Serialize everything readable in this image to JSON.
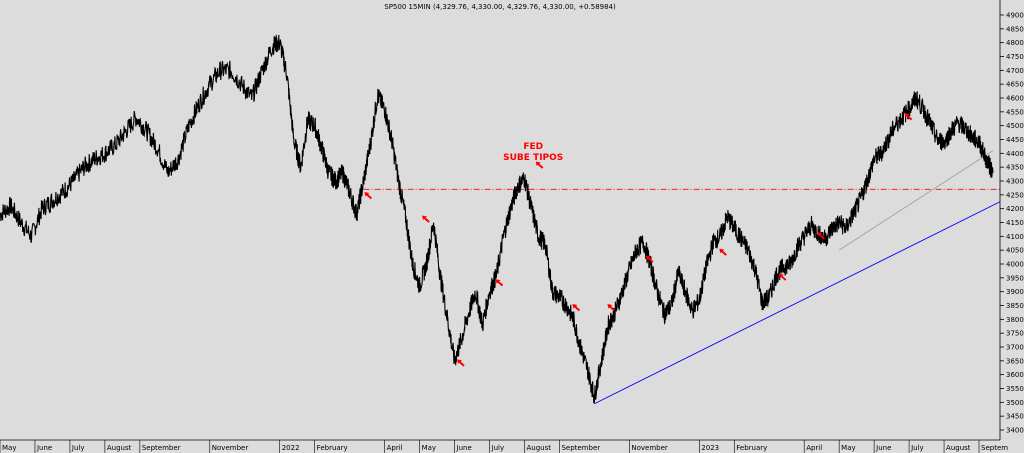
{
  "chart_data": {
    "type": "line",
    "title": "SP500 15MIN (4,329.76, 4,330.00, 4,329.76, 4,330.00, +0.58984)",
    "xlabel": "",
    "ylabel": "",
    "ylim": [
      3400,
      4900
    ],
    "y_ticks": [
      3400,
      3450,
      3500,
      3550,
      3600,
      3650,
      3700,
      3750,
      3800,
      3850,
      3900,
      3950,
      4000,
      4050,
      4100,
      4150,
      4200,
      4250,
      4300,
      4350,
      4400,
      4450,
      4500,
      4550,
      4600,
      4650,
      4700,
      4750,
      4800,
      4850,
      4900
    ],
    "x_labels": [
      {
        "label": "May",
        "t": 0
      },
      {
        "label": "June",
        "t": 1
      },
      {
        "label": "July",
        "t": 2
      },
      {
        "label": "August",
        "t": 3
      },
      {
        "label": "September",
        "t": 4
      },
      {
        "label": "November",
        "t": 6
      },
      {
        "label": "2022",
        "t": 8
      },
      {
        "label": "February",
        "t": 9
      },
      {
        "label": "April",
        "t": 11
      },
      {
        "label": "May",
        "t": 12
      },
      {
        "label": "June",
        "t": 13
      },
      {
        "label": "July",
        "t": 14
      },
      {
        "label": "August",
        "t": 15
      },
      {
        "label": "September",
        "t": 16
      },
      {
        "label": "November",
        "t": 18
      },
      {
        "label": "2023",
        "t": 20
      },
      {
        "label": "February",
        "t": 21
      },
      {
        "label": "April",
        "t": 23
      },
      {
        "label": "May",
        "t": 24
      },
      {
        "label": "June",
        "t": 25
      },
      {
        "label": "July",
        "t": 26
      },
      {
        "label": "August",
        "t": 27
      },
      {
        "label": "Septem",
        "t": 28
      }
    ],
    "xlim": [
      0,
      28.6
    ],
    "series": [
      {
        "color": "#000000",
        "points": [
          [
            0,
            4180
          ],
          [
            0.3,
            4210
          ],
          [
            0.6,
            4150
          ],
          [
            0.9,
            4100
          ],
          [
            1.2,
            4200
          ],
          [
            1.5,
            4230
          ],
          [
            1.8,
            4260
          ],
          [
            2.1,
            4300
          ],
          [
            2.4,
            4350
          ],
          [
            2.7,
            4380
          ],
          [
            3.0,
            4400
          ],
          [
            3.3,
            4430
          ],
          [
            3.6,
            4480
          ],
          [
            3.9,
            4530
          ],
          [
            4.2,
            4480
          ],
          [
            4.5,
            4420
          ],
          [
            4.8,
            4330
          ],
          [
            5.1,
            4380
          ],
          [
            5.4,
            4500
          ],
          [
            5.7,
            4580
          ],
          [
            6.0,
            4650
          ],
          [
            6.3,
            4700
          ],
          [
            6.6,
            4700
          ],
          [
            6.9,
            4650
          ],
          [
            7.2,
            4600
          ],
          [
            7.5,
            4700
          ],
          [
            7.8,
            4790
          ],
          [
            8.0,
            4800
          ],
          [
            8.2,
            4690
          ],
          [
            8.4,
            4450
          ],
          [
            8.6,
            4350
          ],
          [
            8.8,
            4520
          ],
          [
            9.0,
            4500
          ],
          [
            9.2,
            4420
          ],
          [
            9.4,
            4330
          ],
          [
            9.6,
            4300
          ],
          [
            9.8,
            4330
          ],
          [
            10.0,
            4260
          ],
          [
            10.2,
            4180
          ],
          [
            10.4,
            4300
          ],
          [
            10.6,
            4440
          ],
          [
            10.8,
            4610
          ],
          [
            11.0,
            4560
          ],
          [
            11.2,
            4450
          ],
          [
            11.4,
            4300
          ],
          [
            11.6,
            4170
          ],
          [
            11.8,
            4000
          ],
          [
            12.0,
            3920
          ],
          [
            12.2,
            4000
          ],
          [
            12.4,
            4150
          ],
          [
            12.6,
            3950
          ],
          [
            12.8,
            3800
          ],
          [
            13.0,
            3650
          ],
          [
            13.2,
            3730
          ],
          [
            13.4,
            3820
          ],
          [
            13.6,
            3900
          ],
          [
            13.8,
            3780
          ],
          [
            14.0,
            3900
          ],
          [
            14.2,
            3960
          ],
          [
            14.4,
            4100
          ],
          [
            14.6,
            4200
          ],
          [
            14.8,
            4280
          ],
          [
            15.0,
            4310
          ],
          [
            15.2,
            4200
          ],
          [
            15.4,
            4100
          ],
          [
            15.6,
            4070
          ],
          [
            15.8,
            3900
          ],
          [
            16.0,
            3880
          ],
          [
            16.2,
            3850
          ],
          [
            16.4,
            3800
          ],
          [
            16.6,
            3700
          ],
          [
            16.8,
            3620
          ],
          [
            17.0,
            3520
          ],
          [
            17.2,
            3650
          ],
          [
            17.4,
            3780
          ],
          [
            17.6,
            3830
          ],
          [
            17.8,
            3900
          ],
          [
            18.0,
            3980
          ],
          [
            18.2,
            4050
          ],
          [
            18.4,
            4080
          ],
          [
            18.6,
            4000
          ],
          [
            18.8,
            3900
          ],
          [
            19.0,
            3820
          ],
          [
            19.2,
            3850
          ],
          [
            19.4,
            3970
          ],
          [
            19.6,
            3900
          ],
          [
            19.8,
            3830
          ],
          [
            20.0,
            3870
          ],
          [
            20.2,
            3990
          ],
          [
            20.4,
            4080
          ],
          [
            20.6,
            4100
          ],
          [
            20.8,
            4170
          ],
          [
            21.0,
            4130
          ],
          [
            21.2,
            4090
          ],
          [
            21.4,
            4050
          ],
          [
            21.6,
            3980
          ],
          [
            21.8,
            3860
          ],
          [
            22.0,
            3880
          ],
          [
            22.2,
            3960
          ],
          [
            22.4,
            3990
          ],
          [
            22.6,
            4000
          ],
          [
            22.8,
            4060
          ],
          [
            23.0,
            4100
          ],
          [
            23.2,
            4140
          ],
          [
            23.4,
            4110
          ],
          [
            23.6,
            4090
          ],
          [
            23.8,
            4130
          ],
          [
            24.0,
            4150
          ],
          [
            24.2,
            4130
          ],
          [
            24.4,
            4180
          ],
          [
            24.6,
            4230
          ],
          [
            24.8,
            4300
          ],
          [
            25.0,
            4380
          ],
          [
            25.2,
            4400
          ],
          [
            25.4,
            4450
          ],
          [
            25.6,
            4500
          ],
          [
            25.8,
            4530
          ],
          [
            26.0,
            4560
          ],
          [
            26.2,
            4600
          ],
          [
            26.4,
            4560
          ],
          [
            26.6,
            4510
          ],
          [
            26.8,
            4450
          ],
          [
            27.0,
            4440
          ],
          [
            27.2,
            4480
          ],
          [
            27.4,
            4510
          ],
          [
            27.6,
            4490
          ],
          [
            27.8,
            4460
          ],
          [
            28.0,
            4440
          ],
          [
            28.2,
            4380
          ],
          [
            28.4,
            4330
          ]
        ]
      }
    ],
    "reference_lines": [
      {
        "type": "horizontal",
        "y": 4270,
        "color": "#ff0000",
        "style": "dashdot",
        "x_from": 10.4,
        "x_to": 28.6
      },
      {
        "type": "trend",
        "color": "#0000ff",
        "from": [
          17,
          3495
        ],
        "to": [
          28.6,
          4225
        ]
      },
      {
        "type": "trend",
        "color": "#a0a0a0",
        "from": [
          24,
          4050
        ],
        "to": [
          28.4,
          4410
        ]
      }
    ],
    "arrows": [
      [
        10.45,
        4255
      ],
      [
        12.1,
        4170
      ],
      [
        13.1,
        3650
      ],
      [
        14.2,
        3940
      ],
      [
        16.4,
        3850
      ],
      [
        17.4,
        3850
      ],
      [
        18.5,
        4025
      ],
      [
        20.6,
        4050
      ],
      [
        22.3,
        3960
      ],
      [
        23.4,
        4110
      ],
      [
        25.9,
        4540
      ]
    ],
    "annotations": [
      {
        "lines": [
          "FED",
          "SUBE TIPOS"
        ],
        "x": 15.25,
        "y": 4415,
        "arrow": [
          15.35,
          4365
        ]
      }
    ],
    "grid": false,
    "legend": "none"
  }
}
